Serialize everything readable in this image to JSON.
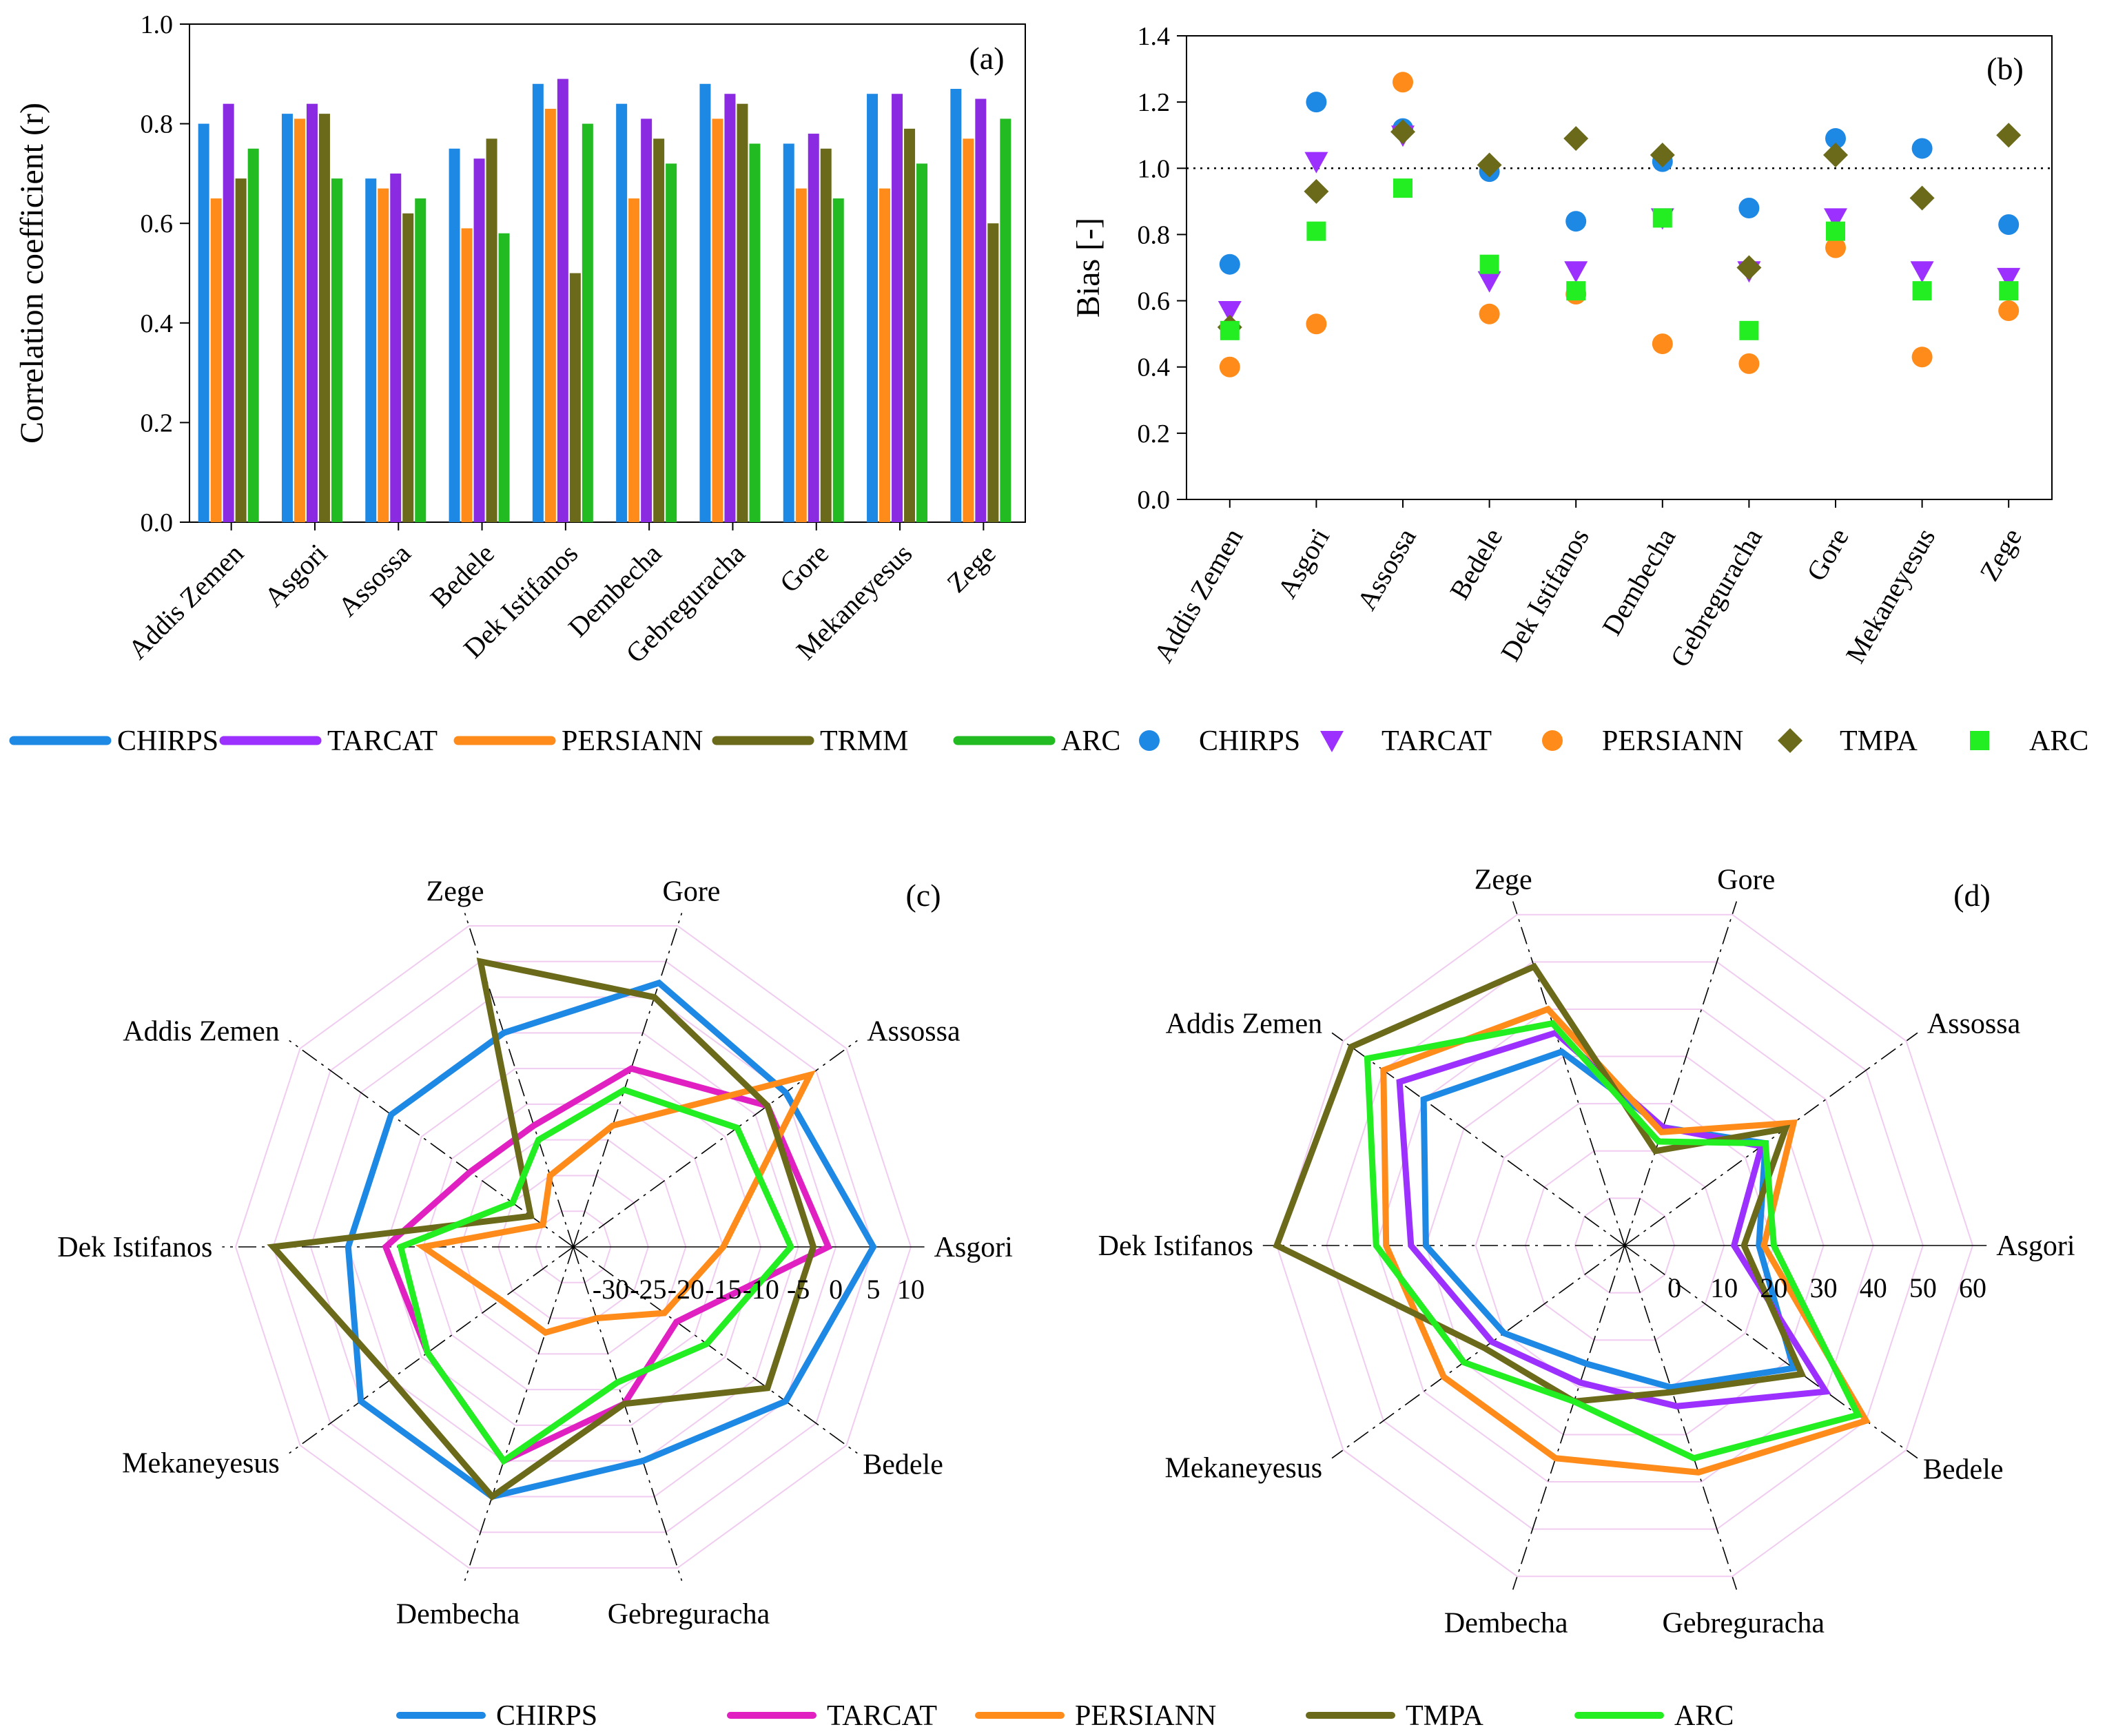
{
  "stations": [
    "Addis Zemen",
    "Asgori",
    "Assossa",
    "Bedele",
    "Dek Istifanos",
    "Dembecha",
    "Gebreguracha",
    "Gore",
    "Mekaneyesus",
    "Zege"
  ],
  "chart_data": [
    {
      "panel": "(a)",
      "type": "bar",
      "ylabel": "Correlation coefficient (r)",
      "ylim": [
        0.0,
        1.0
      ],
      "yticks": [
        "0.0",
        "0.2",
        "0.4",
        "0.6",
        "0.8",
        "1.0"
      ],
      "series": [
        {
          "name": "CHIRPS",
          "color": "#1E88E5",
          "values": [
            0.8,
            0.82,
            0.69,
            0.75,
            0.88,
            0.84,
            0.88,
            0.76,
            0.86,
            0.87
          ]
        },
        {
          "name": "PERSIANN",
          "color": "#FF8C1A",
          "values": [
            0.65,
            0.81,
            0.67,
            0.59,
            0.83,
            0.65,
            0.81,
            0.67,
            0.67,
            0.77
          ]
        },
        {
          "name": "TARCAT",
          "color": "#8A2BE2",
          "values": [
            0.84,
            0.84,
            0.7,
            0.73,
            0.89,
            0.81,
            0.86,
            0.78,
            0.86,
            0.85
          ]
        },
        {
          "name": "TRMM",
          "color": "#6B6A1A",
          "values": [
            0.69,
            0.82,
            0.62,
            0.77,
            0.5,
            0.77,
            0.84,
            0.75,
            0.79,
            0.6
          ]
        },
        {
          "name": "ARC",
          "color": "#22BB22",
          "values": [
            0.75,
            0.69,
            0.65,
            0.58,
            0.8,
            0.72,
            0.76,
            0.65,
            0.72,
            0.81
          ]
        }
      ]
    },
    {
      "panel": "(b)",
      "type": "scatter",
      "ylabel": "Bias [-]",
      "ylim": [
        0.0,
        1.4
      ],
      "yticks": [
        "0.0",
        "0.2",
        "0.4",
        "0.6",
        "0.8",
        "1.0",
        "1.2",
        "1.4"
      ],
      "reference_line": 1.0,
      "series": [
        {
          "name": "CHIRPS",
          "color": "#1E88E5",
          "marker": "circle",
          "values": [
            0.71,
            1.2,
            1.12,
            0.99,
            0.84,
            1.02,
            0.88,
            1.09,
            1.06,
            0.83
          ]
        },
        {
          "name": "TARCAT",
          "color": "#9B30FF",
          "marker": "triangle",
          "values": [
            0.57,
            1.02,
            1.1,
            0.66,
            0.69,
            0.85,
            0.69,
            0.85,
            0.69,
            0.67
          ]
        },
        {
          "name": "PERSIANN",
          "color": "#FF8C1A",
          "marker": "circle",
          "values": [
            0.4,
            0.53,
            1.26,
            0.56,
            0.62,
            0.47,
            0.41,
            0.76,
            0.43,
            0.57
          ]
        },
        {
          "name": "TMPA",
          "color": "#6B6A1A",
          "marker": "diamond",
          "values": [
            0.52,
            0.93,
            1.11,
            1.01,
            1.09,
            1.04,
            0.7,
            1.04,
            0.91,
            1.1
          ]
        },
        {
          "name": "ARC",
          "color": "#22EE22",
          "marker": "square",
          "values": [
            0.51,
            0.81,
            0.94,
            0.71,
            0.63,
            0.85,
            0.51,
            0.81,
            0.63,
            0.63
          ]
        }
      ]
    },
    {
      "panel": "(c)",
      "type": "radar",
      "axes": [
        "Asgori",
        "Bedele",
        "Gebreguracha",
        "Dembecha",
        "Mekaneyesus",
        "Dek Istifanos",
        "Addis Zemen",
        "Zege",
        "Gore",
        "Assossa"
      ],
      "rlim": [
        -35,
        10
      ],
      "rticks": [
        "-30",
        "-25",
        "-20",
        "-15",
        "-10",
        "-5",
        "0",
        "5",
        "10"
      ],
      "series": [
        {
          "name": "CHIRPS",
          "color": "#1E88E5",
          "values": [
            5,
            0,
            -5,
            0,
            0,
            -5,
            -5,
            -5,
            2,
            0
          ]
        },
        {
          "name": "TARCAT",
          "color": "#E020C0",
          "values": [
            -1,
            -18,
            -13,
            -5,
            -11,
            -10,
            -18,
            -18,
            -10,
            -3
          ]
        },
        {
          "name": "PERSIANN",
          "color": "#FF8C1A",
          "values": [
            -15,
            -20,
            -25,
            -23,
            -23,
            -15,
            -30,
            -25,
            -18,
            4
          ]
        },
        {
          "name": "TMPA",
          "color": "#6B6A1A",
          "values": [
            -3,
            -3,
            -13,
            0,
            -5,
            5,
            -28,
            5,
            0,
            -3
          ]
        },
        {
          "name": "ARC",
          "color": "#22EE22",
          "values": [
            -6,
            -13,
            -16,
            -5,
            -11,
            -12,
            -25,
            -20,
            -13,
            -8
          ]
        }
      ]
    },
    {
      "panel": "(d)",
      "type": "radar",
      "axes": [
        "Asgori",
        "Bedele",
        "Gebreguracha",
        "Dembecha",
        "Mekaneyesus",
        "Dek Istifanos",
        "Addis Zemen",
        "Zege",
        "Gore",
        "Assossa"
      ],
      "rlim": [
        -10,
        60
      ],
      "rticks": [
        "0",
        "10",
        "20",
        "30",
        "40",
        "50",
        "60"
      ],
      "series": [
        {
          "name": "CHIRPS",
          "color": "#1E88E5",
          "values": [
            17,
            32,
            20,
            15,
            20,
            30,
            40,
            31,
            15,
            25
          ]
        },
        {
          "name": "TARCAT",
          "color": "#9B30FF",
          "values": [
            12,
            40,
            24,
            19,
            23,
            33,
            46,
            35,
            15,
            24
          ]
        },
        {
          "name": "PERSIANN",
          "color": "#FF8C1A",
          "values": [
            18,
            50,
            38,
            35,
            35,
            38,
            50,
            40,
            14,
            32
          ]
        },
        {
          "name": "TMPA",
          "color": "#6B6A1A",
          "values": [
            14,
            34,
            21,
            23,
            25,
            60,
            58,
            49,
            10,
            30
          ]
        },
        {
          "name": "ARC",
          "color": "#22EE22",
          "values": [
            20,
            48,
            35,
            23,
            30,
            40,
            54,
            37,
            12,
            25
          ]
        }
      ]
    }
  ],
  "legends": {
    "top": [
      {
        "label": "CHIRPS",
        "color": "#1E88E5",
        "kind": "line"
      },
      {
        "label": "TARCAT",
        "color": "#9B30FF",
        "kind": "line"
      },
      {
        "label": "PERSIANN",
        "color": "#FF8C1A",
        "kind": "line"
      },
      {
        "label": "TRMM",
        "color": "#6B6A1A",
        "kind": "line"
      },
      {
        "label": "ARC",
        "color": "#22BB22",
        "kind": "line"
      },
      {
        "label": "CHIRPS",
        "color": "#1E88E5",
        "kind": "circle"
      },
      {
        "label": "TARCAT",
        "color": "#9B30FF",
        "kind": "triangle"
      },
      {
        "label": "PERSIANN",
        "color": "#FF8C1A",
        "kind": "circle"
      },
      {
        "label": "TMPA",
        "color": "#6B6A1A",
        "kind": "diamond"
      },
      {
        "label": "ARC",
        "color": "#22EE22",
        "kind": "square"
      }
    ],
    "bottom": [
      {
        "label": "CHIRPS",
        "color": "#1E88E5"
      },
      {
        "label": "TARCAT",
        "color": "#E020C0"
      },
      {
        "label": "PERSIANN",
        "color": "#FF8C1A"
      },
      {
        "label": "TMPA",
        "color": "#6B6A1A"
      },
      {
        "label": "ARC",
        "color": "#22EE22"
      }
    ]
  },
  "colors": {
    "grid_ring": "#F0CCF0",
    "axis": "#000000"
  }
}
